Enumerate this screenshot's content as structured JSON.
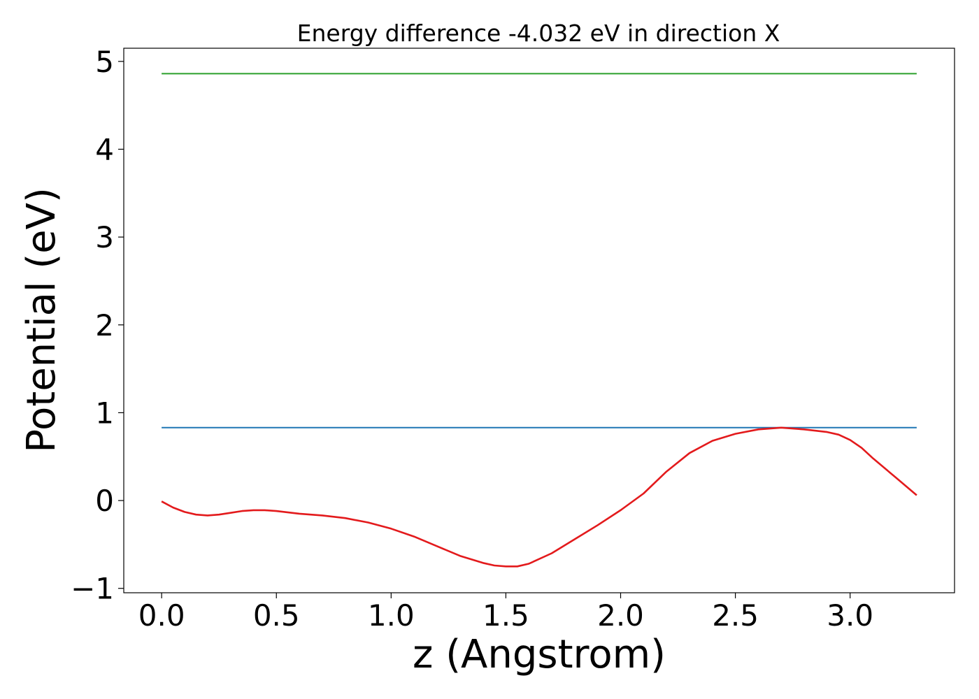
{
  "chart_data": {
    "type": "line",
    "title": "Energy difference -4.032 eV in direction X",
    "xlabel": "z (Angstrom)",
    "ylabel": "Potential (eV)",
    "xlim": [
      -0.165,
      3.455
    ],
    "ylim": [
      -1.05,
      5.15
    ],
    "xticks": [
      0.0,
      0.5,
      1.0,
      1.5,
      2.0,
      2.5,
      3.0
    ],
    "xtick_labels": [
      "0.0",
      "0.5",
      "1.0",
      "1.5",
      "2.0",
      "2.5",
      "3.0"
    ],
    "yticks": [
      -1,
      0,
      1,
      2,
      3,
      4,
      5
    ],
    "ytick_labels": [
      "−1",
      "0",
      "1",
      "2",
      "3",
      "4",
      "5"
    ],
    "grid": false,
    "series": [
      {
        "color": "#2ca02c",
        "x": [
          0.0,
          3.29
        ],
        "y": [
          4.86,
          4.86
        ]
      },
      {
        "color": "#1f77b4",
        "x": [
          0.0,
          3.29
        ],
        "y": [
          0.83,
          0.83
        ]
      },
      {
        "color": "#e31a1c",
        "x": [
          0.0,
          0.05,
          0.1,
          0.15,
          0.2,
          0.25,
          0.3,
          0.35,
          0.4,
          0.45,
          0.5,
          0.6,
          0.7,
          0.8,
          0.9,
          1.0,
          1.1,
          1.2,
          1.3,
          1.4,
          1.45,
          1.5,
          1.55,
          1.6,
          1.7,
          1.8,
          1.9,
          2.0,
          2.1,
          2.2,
          2.3,
          2.4,
          2.5,
          2.6,
          2.7,
          2.8,
          2.9,
          2.95,
          3.0,
          3.05,
          3.1,
          3.2,
          3.29
        ],
        "y": [
          -0.01,
          -0.08,
          -0.13,
          -0.16,
          -0.17,
          -0.16,
          -0.14,
          -0.12,
          -0.11,
          -0.11,
          -0.12,
          -0.15,
          -0.17,
          -0.2,
          -0.25,
          -0.32,
          -0.41,
          -0.52,
          -0.63,
          -0.71,
          -0.74,
          -0.75,
          -0.75,
          -0.72,
          -0.6,
          -0.44,
          -0.28,
          -0.11,
          0.08,
          0.33,
          0.54,
          0.68,
          0.76,
          0.81,
          0.83,
          0.81,
          0.78,
          0.75,
          0.69,
          0.6,
          0.48,
          0.26,
          0.06
        ]
      }
    ]
  }
}
